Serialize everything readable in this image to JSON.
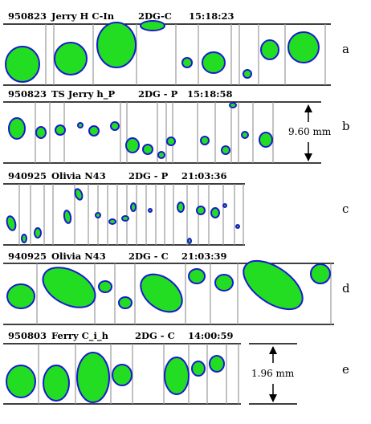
{
  "panels": [
    {
      "id": "a",
      "date": "950823",
      "name": "Jerry H C-In",
      "mode": "2DG-C",
      "time": "15:18:23",
      "label": "a"
    },
    {
      "id": "b",
      "date": "950823",
      "name": "TS Jerry h_P",
      "mode": "2DG - P",
      "time": "15:18:58",
      "label": "b",
      "scale": "9.60 mm"
    },
    {
      "id": "c",
      "date": "940925",
      "name": "Olivia N43",
      "mode": "2DG - P",
      "time": "21:03:36",
      "label": "c"
    },
    {
      "id": "d",
      "date": "940925",
      "name": "Olivia N43",
      "mode": "2DG - C",
      "time": "21:03:39",
      "label": "d"
    },
    {
      "id": "e",
      "date": "950803",
      "name": "Ferry C_i_h",
      "mode": "2DG - C",
      "time": "14:00:59",
      "label": "e",
      "scale": "1.96 mm"
    }
  ],
  "colors": {
    "particle": "#22dd22",
    "edge": "#1a1acc",
    "rim": "#cc2222",
    "frame": "#8a8a8a",
    "background": "#ffffff"
  }
}
